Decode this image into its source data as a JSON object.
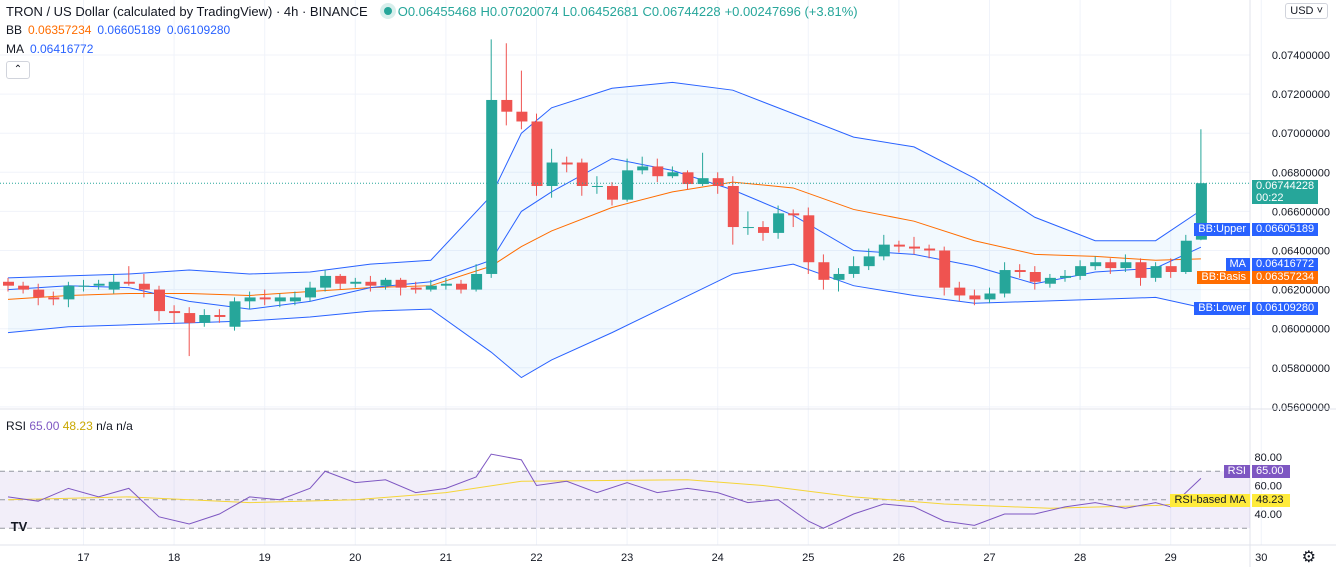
{
  "header": {
    "title": "TRON / US Dollar (calculated by TradingView) · 4h · BINANCE",
    "ohlc": {
      "o": "O0.06455468",
      "h": "H0.07020074",
      "l": "L0.06452681",
      "c": "C0.06744228",
      "change": "+0.00247696 (+3.81%)"
    },
    "bb_label": "BB",
    "bb_basis": "0.06357234",
    "bb_upper": "0.06605189",
    "bb_lower": "0.06109280",
    "ma_label": "MA",
    "ma_value": "0.06416772",
    "collapse_icon": "chevron-up-icon",
    "currency": "USD"
  },
  "rsi_legend": {
    "label": "RSI",
    "value": "65.00",
    "ma_value": "48.23",
    "na1": "n/a",
    "na2": "n/a"
  },
  "tags": {
    "price": "0.06744228",
    "countdown": "00:22",
    "upper_label": "BB:Upper",
    "upper": "0.06605189",
    "ma_label": "MA",
    "ma": "0.06416772",
    "basis_label": "BB:Basis",
    "basis": "0.06357234",
    "lower_label": "BB:Lower",
    "lower": "0.06109280",
    "rsi_label": "RSI",
    "rsi": "65.00",
    "rsi_ma_label": "RSI-based MA",
    "rsi_ma": "48.23"
  },
  "colors": {
    "up": "#26a69a",
    "down": "#ef5350",
    "bb": "#2962ff",
    "basis": "#ff6d00",
    "ma": "#2962ff",
    "rsi": "#7e57c2",
    "rsi_ma": "#f5d538"
  },
  "logo": "TV",
  "settings_icon": "gear-icon",
  "chart_data": {
    "type": "candlestick",
    "title": "TRON / US Dollar · 4h · BINANCE",
    "ylim": [
      0.0556,
      0.0752
    ],
    "price_ticks": [
      "0.07400000",
      "0.07200000",
      "0.07000000",
      "0.06800000",
      "0.06600000",
      "0.06400000",
      "0.06200000",
      "0.06000000",
      "0.05800000",
      "0.05600000"
    ],
    "price_tick_values": [
      0.074,
      0.072,
      0.07,
      0.068,
      0.066,
      0.064,
      0.062,
      0.06,
      0.058,
      0.056
    ],
    "x_labels": [
      "17",
      "18",
      "19",
      "20",
      "21",
      "22",
      "23",
      "24",
      "25",
      "26",
      "27",
      "28",
      "29",
      "30"
    ],
    "x_label_candle_index": [
      5,
      11,
      17,
      23,
      29,
      35,
      41,
      47,
      53,
      59,
      65,
      71,
      77,
      83
    ],
    "candles_ohlc": [
      [
        0.0624,
        0.0626,
        0.0619,
        0.0622
      ],
      [
        0.0622,
        0.0624,
        0.0618,
        0.062
      ],
      [
        0.062,
        0.0623,
        0.0612,
        0.0616
      ],
      [
        0.0616,
        0.0619,
        0.0612,
        0.0615
      ],
      [
        0.0615,
        0.0624,
        0.0611,
        0.0622
      ],
      [
        0.0622,
        0.0625,
        0.0619,
        0.0622
      ],
      [
        0.0622,
        0.0625,
        0.062,
        0.0623
      ],
      [
        0.062,
        0.0628,
        0.0618,
        0.0624
      ],
      [
        0.0624,
        0.0632,
        0.0622,
        0.0623
      ],
      [
        0.0623,
        0.0628,
        0.0616,
        0.062
      ],
      [
        0.062,
        0.0622,
        0.0604,
        0.0609
      ],
      [
        0.0609,
        0.0612,
        0.0603,
        0.0608
      ],
      [
        0.0608,
        0.0611,
        0.0586,
        0.0603
      ],
      [
        0.0603,
        0.061,
        0.0601,
        0.0607
      ],
      [
        0.0607,
        0.061,
        0.0603,
        0.0606
      ],
      [
        0.0601,
        0.0616,
        0.0599,
        0.0614
      ],
      [
        0.0614,
        0.0619,
        0.061,
        0.0616
      ],
      [
        0.0616,
        0.062,
        0.0612,
        0.0615
      ],
      [
        0.0614,
        0.0618,
        0.0611,
        0.0616
      ],
      [
        0.0614,
        0.0619,
        0.0612,
        0.0616
      ],
      [
        0.0616,
        0.0624,
        0.0614,
        0.0621
      ],
      [
        0.0621,
        0.063,
        0.0619,
        0.0627
      ],
      [
        0.0627,
        0.0628,
        0.062,
        0.0623
      ],
      [
        0.0623,
        0.0626,
        0.0621,
        0.0624
      ],
      [
        0.0624,
        0.0627,
        0.0619,
        0.0622
      ],
      [
        0.0622,
        0.0626,
        0.062,
        0.0625
      ],
      [
        0.0625,
        0.0626,
        0.0617,
        0.0621
      ],
      [
        0.0621,
        0.0624,
        0.0618,
        0.062
      ],
      [
        0.062,
        0.0625,
        0.0619,
        0.0622
      ],
      [
        0.0622,
        0.0626,
        0.062,
        0.0623
      ],
      [
        0.0623,
        0.0625,
        0.0618,
        0.062
      ],
      [
        0.062,
        0.0633,
        0.0619,
        0.0628
      ],
      [
        0.0628,
        0.0748,
        0.0626,
        0.0717
      ],
      [
        0.0717,
        0.0746,
        0.0704,
        0.0711
      ],
      [
        0.0711,
        0.0732,
        0.0702,
        0.0706
      ],
      [
        0.0706,
        0.071,
        0.0668,
        0.0673
      ],
      [
        0.0673,
        0.0692,
        0.0667,
        0.0685
      ],
      [
        0.0685,
        0.0688,
        0.068,
        0.0684
      ],
      [
        0.0685,
        0.0687,
        0.0668,
        0.0673
      ],
      [
        0.0673,
        0.0678,
        0.0669,
        0.0673
      ],
      [
        0.0673,
        0.0675,
        0.0663,
        0.0666
      ],
      [
        0.0666,
        0.0687,
        0.0665,
        0.0681
      ],
      [
        0.0681,
        0.0688,
        0.0679,
        0.0683
      ],
      [
        0.0683,
        0.0687,
        0.0675,
        0.0678
      ],
      [
        0.0678,
        0.0683,
        0.0677,
        0.068
      ],
      [
        0.068,
        0.0681,
        0.0671,
        0.0674
      ],
      [
        0.0674,
        0.069,
        0.0673,
        0.0677
      ],
      [
        0.0677,
        0.068,
        0.0669,
        0.0673
      ],
      [
        0.0673,
        0.0678,
        0.0643,
        0.0652
      ],
      [
        0.0652,
        0.066,
        0.0648,
        0.0652
      ],
      [
        0.0652,
        0.0655,
        0.0645,
        0.0649
      ],
      [
        0.0649,
        0.0663,
        0.0646,
        0.0659
      ],
      [
        0.0659,
        0.0661,
        0.0652,
        0.0658
      ],
      [
        0.0658,
        0.0662,
        0.0628,
        0.0634
      ],
      [
        0.0634,
        0.0638,
        0.062,
        0.0625
      ],
      [
        0.0625,
        0.0631,
        0.0619,
        0.0628
      ],
      [
        0.0628,
        0.0637,
        0.0626,
        0.0632
      ],
      [
        0.0632,
        0.0641,
        0.063,
        0.0637
      ],
      [
        0.0637,
        0.0648,
        0.0635,
        0.0643
      ],
      [
        0.0643,
        0.0645,
        0.0639,
        0.0642
      ],
      [
        0.0642,
        0.0647,
        0.0638,
        0.0641
      ],
      [
        0.0641,
        0.0643,
        0.0636,
        0.064
      ],
      [
        0.064,
        0.0642,
        0.0617,
        0.0621
      ],
      [
        0.0621,
        0.0624,
        0.0614,
        0.0617
      ],
      [
        0.0617,
        0.062,
        0.0612,
        0.0615
      ],
      [
        0.0615,
        0.0621,
        0.0613,
        0.0618
      ],
      [
        0.0618,
        0.0634,
        0.0616,
        0.063
      ],
      [
        0.063,
        0.0633,
        0.0626,
        0.0629
      ],
      [
        0.0629,
        0.0632,
        0.062,
        0.0624
      ],
      [
        0.0623,
        0.0628,
        0.0621,
        0.0626
      ],
      [
        0.0626,
        0.063,
        0.0624,
        0.0627
      ],
      [
        0.0627,
        0.0635,
        0.0625,
        0.0632
      ],
      [
        0.0632,
        0.0637,
        0.063,
        0.0634
      ],
      [
        0.0634,
        0.0636,
        0.0628,
        0.0631
      ],
      [
        0.0631,
        0.0638,
        0.0629,
        0.0634
      ],
      [
        0.0634,
        0.0636,
        0.0622,
        0.0626
      ],
      [
        0.0626,
        0.0634,
        0.0624,
        0.0632
      ],
      [
        0.0632,
        0.0636,
        0.0626,
        0.0629
      ],
      [
        0.0629,
        0.0648,
        0.0628,
        0.0645
      ],
      [
        0.06455468,
        0.07020074,
        0.06452681,
        0.06744228
      ]
    ],
    "indicator_index": [
      0,
      4,
      8,
      12,
      16,
      20,
      24,
      28,
      32,
      34,
      36,
      40,
      44,
      48,
      52,
      56,
      60,
      64,
      68,
      72,
      76,
      79
    ],
    "bb_upper": [
      0.0626,
      0.0627,
      0.0628,
      0.063,
      0.0628,
      0.0629,
      0.0633,
      0.0635,
      0.0668,
      0.07,
      0.0713,
      0.0723,
      0.0726,
      0.0722,
      0.071,
      0.0698,
      0.0693,
      0.0677,
      0.0657,
      0.0645,
      0.0645,
      0.06605189
    ],
    "bb_basis": [
      0.0615,
      0.0617,
      0.0618,
      0.0618,
      0.0617,
      0.0619,
      0.0621,
      0.0622,
      0.0632,
      0.0642,
      0.065,
      0.0662,
      0.067,
      0.0675,
      0.0672,
      0.0661,
      0.0655,
      0.0645,
      0.0638,
      0.0637,
      0.0635,
      0.06357234
    ],
    "bb_lower": [
      0.0598,
      0.0601,
      0.0602,
      0.0603,
      0.0604,
      0.0606,
      0.0609,
      0.061,
      0.0588,
      0.0575,
      0.0584,
      0.0598,
      0.0613,
      0.0628,
      0.0633,
      0.0622,
      0.0617,
      0.0613,
      0.0614,
      0.0615,
      0.0616,
      0.0610928
    ],
    "ma": [
      0.062,
      0.0622,
      0.0621,
      0.0614,
      0.061,
      0.0614,
      0.0621,
      0.0624,
      0.0635,
      0.066,
      0.067,
      0.0687,
      0.0681,
      0.0671,
      0.0658,
      0.064,
      0.0638,
      0.0632,
      0.0623,
      0.0629,
      0.0631,
      0.06416772
    ],
    "rsi_ylim": [
      20,
      90
    ],
    "rsi_ticks": [
      "80.00",
      "60.00",
      "40.00"
    ],
    "rsi_tick_values": [
      80,
      60,
      40
    ],
    "rsi_bands": [
      70,
      50,
      30
    ],
    "rsi_index": [
      0,
      2,
      4,
      6,
      8,
      10,
      12,
      14,
      16,
      18,
      20,
      21,
      23,
      25,
      27,
      29,
      31,
      32,
      34,
      35,
      37,
      39,
      41,
      43,
      45,
      47,
      49,
      51,
      53,
      54,
      56,
      58,
      60,
      62,
      64,
      66,
      68,
      70,
      72,
      74,
      76,
      77,
      79
    ],
    "rsi": [
      52,
      49,
      58,
      52,
      58,
      38,
      33,
      40,
      52,
      50,
      58,
      70,
      62,
      64,
      55,
      58,
      66,
      82,
      78,
      60,
      63,
      55,
      62,
      55,
      58,
      55,
      48,
      50,
      35,
      30,
      40,
      47,
      45,
      35,
      32,
      40,
      40,
      45,
      48,
      44,
      48,
      45,
      65
    ],
    "rsi_ma_index": [
      0,
      8,
      16,
      23,
      29,
      34,
      45,
      50,
      56,
      62,
      69,
      76,
      79
    ],
    "rsi_ma": [
      50,
      52,
      48,
      50,
      55,
      63,
      64,
      60,
      52,
      47,
      44,
      46,
      48.23
    ]
  }
}
